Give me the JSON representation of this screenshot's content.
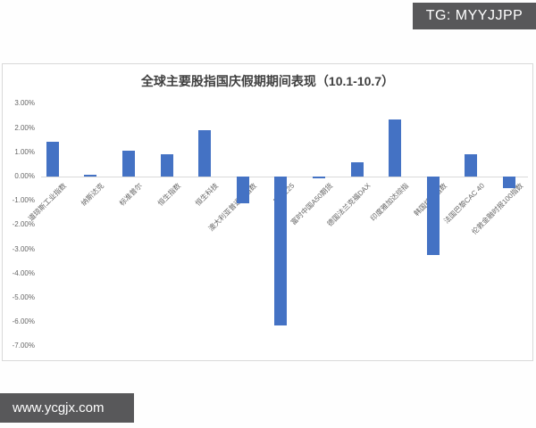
{
  "watermarks": {
    "telegram": "TG: MYYJJPP",
    "website": "www.ycgjx.com"
  },
  "chart_data": {
    "type": "bar",
    "title": "全球主要股指国庆假期期间表现（10.1-10.7）",
    "categories": [
      "道琼斯工业指数",
      "纳斯达克",
      "标准普尔",
      "恒生指数",
      "恒生科技",
      "澳大利亚普通股指数",
      "日经225",
      "富时中国A50期货",
      "德国法兰克福DAX",
      "印度雅加达综指",
      "韩国综合指数",
      "法国巴黎CAC 40",
      "伦敦金融时报100指数"
    ],
    "values": [
      1.42,
      0.07,
      1.06,
      0.91,
      1.93,
      -1.1,
      -6.14,
      -0.05,
      0.6,
      2.37,
      -3.25,
      0.93,
      -0.46
    ],
    "value_unit": "%",
    "xlabel": "",
    "ylabel": "",
    "ylim": [
      -7,
      3
    ],
    "y_tick_labels": [
      "3.00%",
      "2.00%",
      "1.00%",
      "0.00%",
      "-1.00%",
      "-2.00%",
      "-3.00%",
      "-4.00%",
      "-5.00%",
      "-6.00%",
      "-7.00%"
    ],
    "grid": false,
    "legend_position": "none",
    "bar_color": "#4472c4"
  },
  "colors": {
    "bar": "#4472c4",
    "axis_line": "#d9d9d9",
    "badge_background": "#58585a",
    "badge_text": "#ffffff",
    "tick_text": "#666666",
    "title_text": "#404040"
  }
}
